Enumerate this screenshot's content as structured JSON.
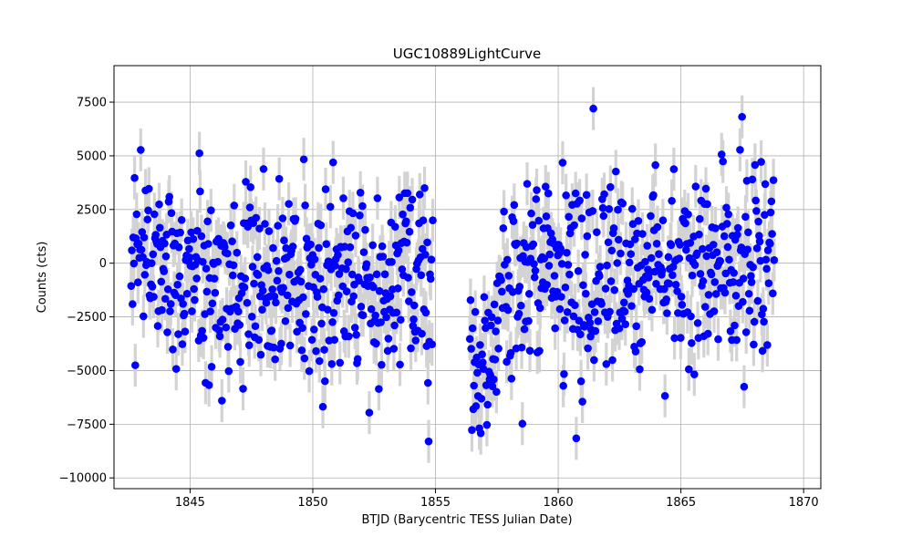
{
  "chart_data": {
    "type": "scatter",
    "title": "UGC10889LightCurve",
    "xlabel": "BTJD (Barycentric TESS Julian Date)",
    "ylabel": "Counts (cts)",
    "xlim": [
      1841.9,
      1870.7
    ],
    "ylim": [
      -10500,
      9200
    ],
    "x_ticks": [
      1845,
      1850,
      1855,
      1860,
      1865,
      1870
    ],
    "y_ticks": [
      -10000,
      -7500,
      -5000,
      -2500,
      0,
      2500,
      5000,
      7500
    ],
    "x_tick_labels": [
      "1845",
      "1850",
      "1855",
      "1860",
      "1865",
      "1870"
    ],
    "y_tick_labels": [
      "−10000",
      "−7500",
      "−5000",
      "−2500",
      "0",
      "2500",
      "5000",
      "7500"
    ],
    "grid": true,
    "error_bar_half_width": 1000,
    "marker_color": "#0000ff",
    "errorbar_color": "#d3d3d3",
    "segments": [
      {
        "x_start": 1842.6,
        "x_end": 1854.9,
        "cadence": 0.0278
      },
      {
        "x_start": 1856.4,
        "x_end": 1868.8,
        "cadence": 0.0278
      }
    ],
    "series": [
      {
        "x": [
          1842.6,
          1843.0,
          1843.5,
          1844.0,
          1844.5,
          1845.0,
          1845.5,
          1846.0,
          1846.5,
          1847.0,
          1847.5,
          1848.0,
          1848.5,
          1849.0,
          1849.5,
          1850.0,
          1850.5,
          1851.0,
          1851.5,
          1852.0,
          1852.5,
          1853.0,
          1853.5,
          1854.0,
          1854.5,
          1854.9,
          1856.4,
          1856.8,
          1857.2,
          1857.6,
          1858.0,
          1858.5,
          1859.0,
          1859.5,
          1860.0,
          1860.5,
          1861.0,
          1861.5,
          1862.0,
          1862.5,
          1863.0,
          1863.5,
          1864.0,
          1864.5,
          1865.0,
          1865.5,
          1866.0,
          1866.5,
          1867.0,
          1867.5,
          1868.0,
          1868.5,
          1868.8
        ],
        "y": [
          300,
          200,
          0,
          -200,
          -500,
          -600,
          -700,
          -900,
          -1000,
          -1100,
          -1200,
          -1200,
          -1100,
          -1000,
          -900,
          -800,
          -800,
          -900,
          -1000,
          -1100,
          -1200,
          -1200,
          -1100,
          -1000,
          -900,
          -800,
          -4500,
          -4800,
          -4200,
          -2000,
          -1000,
          -700,
          -500,
          -400,
          -300,
          -300,
          -400,
          -500,
          -300,
          0,
          300,
          400,
          300,
          100,
          -100,
          -300,
          -400,
          -300,
          -100,
          100,
          300,
          400,
          300
        ]
      }
    ]
  }
}
